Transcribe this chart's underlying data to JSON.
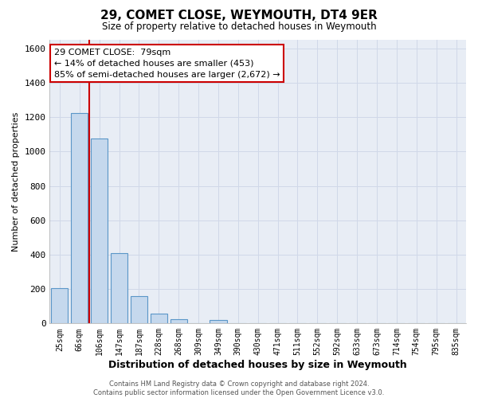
{
  "title": "29, COMET CLOSE, WEYMOUTH, DT4 9ER",
  "subtitle": "Size of property relative to detached houses in Weymouth",
  "xlabel": "Distribution of detached houses by size in Weymouth",
  "ylabel": "Number of detached properties",
  "footer_line1": "Contains HM Land Registry data © Crown copyright and database right 2024.",
  "footer_line2": "Contains public sector information licensed under the Open Government Licence v3.0.",
  "categories": [
    "25sqm",
    "66sqm",
    "106sqm",
    "147sqm",
    "187sqm",
    "228sqm",
    "268sqm",
    "309sqm",
    "349sqm",
    "390sqm",
    "430sqm",
    "471sqm",
    "511sqm",
    "552sqm",
    "592sqm",
    "633sqm",
    "673sqm",
    "714sqm",
    "754sqm",
    "795sqm",
    "835sqm"
  ],
  "bar_values": [
    205,
    1225,
    1075,
    410,
    160,
    55,
    25,
    0,
    20,
    0,
    0,
    0,
    0,
    0,
    0,
    0,
    0,
    0,
    0,
    0,
    0
  ],
  "bar_color": "#c5d8ed",
  "bar_edge_color": "#5a96c8",
  "reference_line_x": 1.5,
  "reference_line_color": "#cc0000",
  "ylim": [
    0,
    1650
  ],
  "yticks": [
    0,
    200,
    400,
    600,
    800,
    1000,
    1200,
    1400,
    1600
  ],
  "annotation_box_text_line1": "29 COMET CLOSE:  79sqm",
  "annotation_box_text_line2": "← 14% of detached houses are smaller (453)",
  "annotation_box_text_line3": "85% of semi-detached houses are larger (2,672) →",
  "grid_color": "#d0d8e8",
  "bg_color": "#ffffff",
  "plot_bg_color": "#e8edf5"
}
